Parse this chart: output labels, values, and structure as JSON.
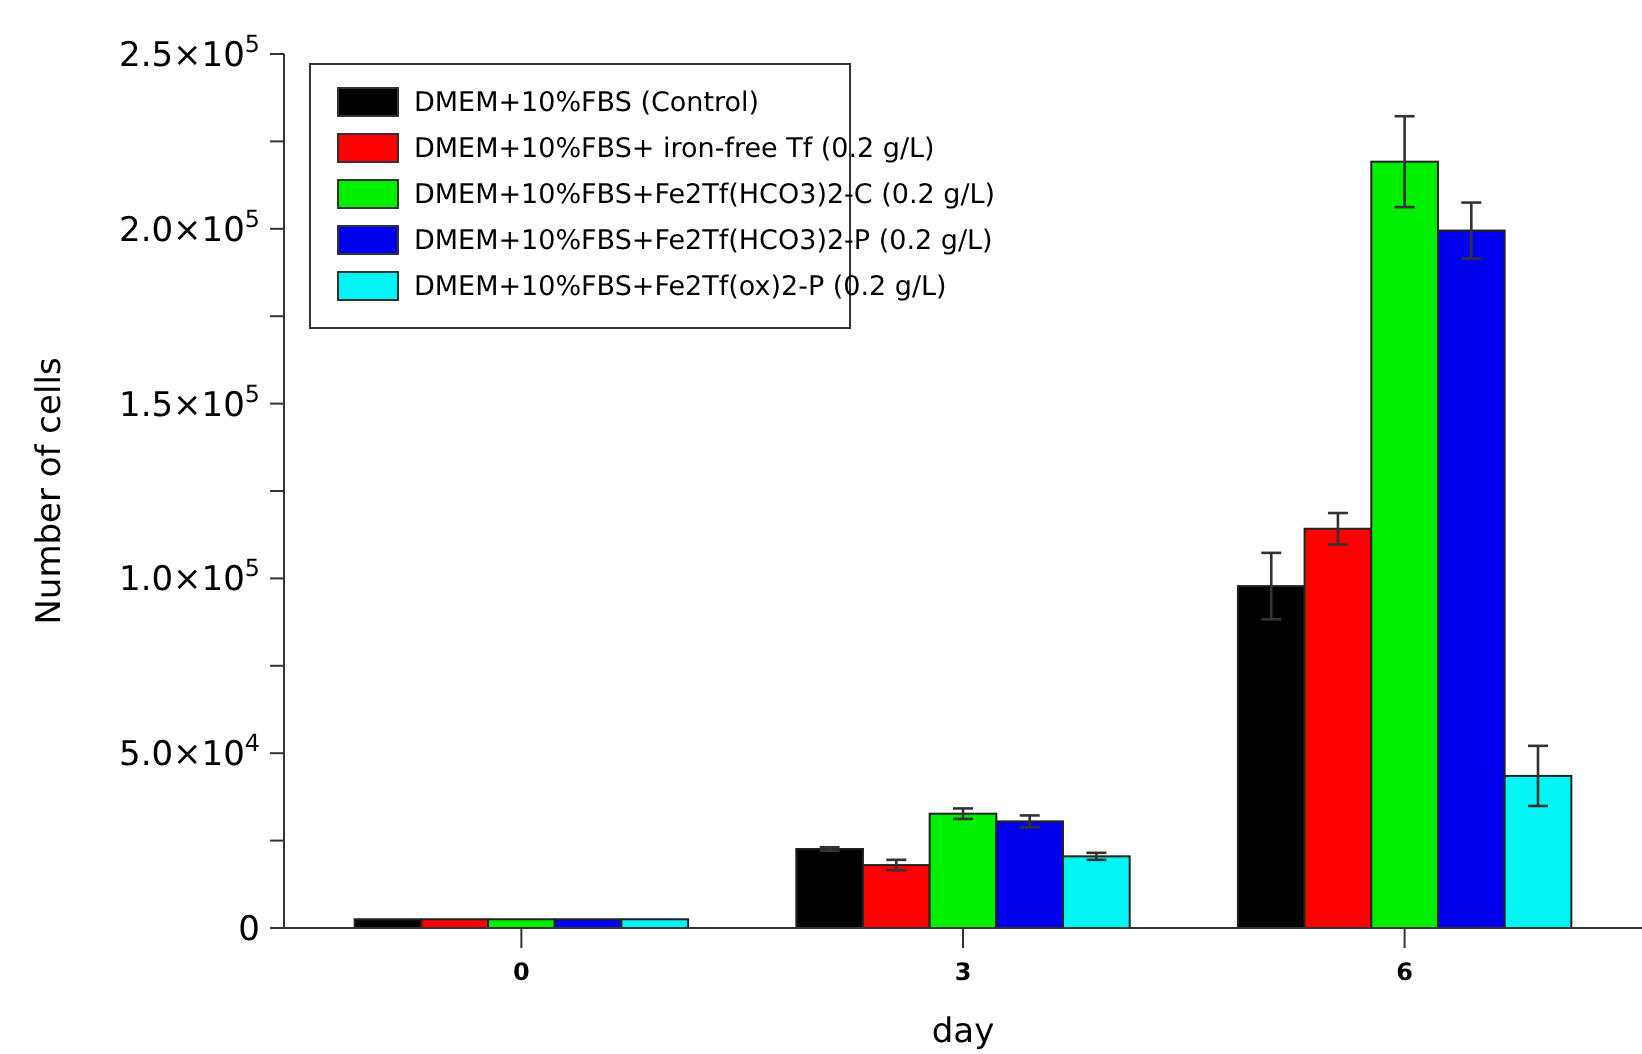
{
  "chart_data": {
    "type": "bar",
    "xlabel": "day",
    "ylabel": "Number of cells",
    "categories": [
      "0",
      "3",
      "6"
    ],
    "series": [
      {
        "name": "DMEM+10%FBS (Control)",
        "color": "#000000",
        "values": [
          2500,
          22600,
          97800
        ],
        "errors": [
          null,
          500,
          9500
        ]
      },
      {
        "name": "DMEM+10%FBS+ iron-free Tf (0.2 g/L)",
        "color": "#ff0000",
        "values": [
          2500,
          18000,
          114200
        ],
        "errors": [
          null,
          1500,
          4500
        ]
      },
      {
        "name": "DMEM+10%FBS+Fe2Tf(HCO3)2-C (0.2 g/L)",
        "color": "#00ee00",
        "values": [
          2500,
          32700,
          219200
        ],
        "errors": [
          null,
          1500,
          13000
        ]
      },
      {
        "name": "DMEM+10%FBS+Fe2Tf(HCO3)2-P (0.2 g/L)",
        "color": "#0000ee",
        "values": [
          2500,
          30500,
          199500
        ],
        "errors": [
          null,
          1700,
          8000
        ]
      },
      {
        "name": "DMEM+10%FBS+Fe2Tf(ox)2-P (0.2 g/L)",
        "color": "#00f5f5",
        "values": [
          2500,
          20500,
          43500
        ],
        "errors": [
          null,
          1000,
          8600
        ]
      }
    ],
    "ylim": [
      0,
      250000
    ],
    "yticks": [
      0,
      {
        "value": 25000,
        "label": null
      },
      {
        "value": 50000,
        "label": "5.0×10$^{4}$"
      },
      {
        "value": 75000,
        "label": null
      },
      {
        "value": 100000,
        "label": "1.0×10$^{5}$"
      },
      {
        "value": 125000,
        "label": null
      },
      {
        "value": 150000,
        "label": "1.5×10$^{5}$"
      },
      {
        "value": 175000,
        "label": null
      },
      {
        "value": 200000,
        "label": "2.0×10$^{5}$"
      },
      {
        "value": 225000,
        "label": null
      },
      {
        "value": 250000,
        "label": "2.5×10$^{5}$"
      }
    ],
    "grid": false,
    "legend": "top left"
  }
}
